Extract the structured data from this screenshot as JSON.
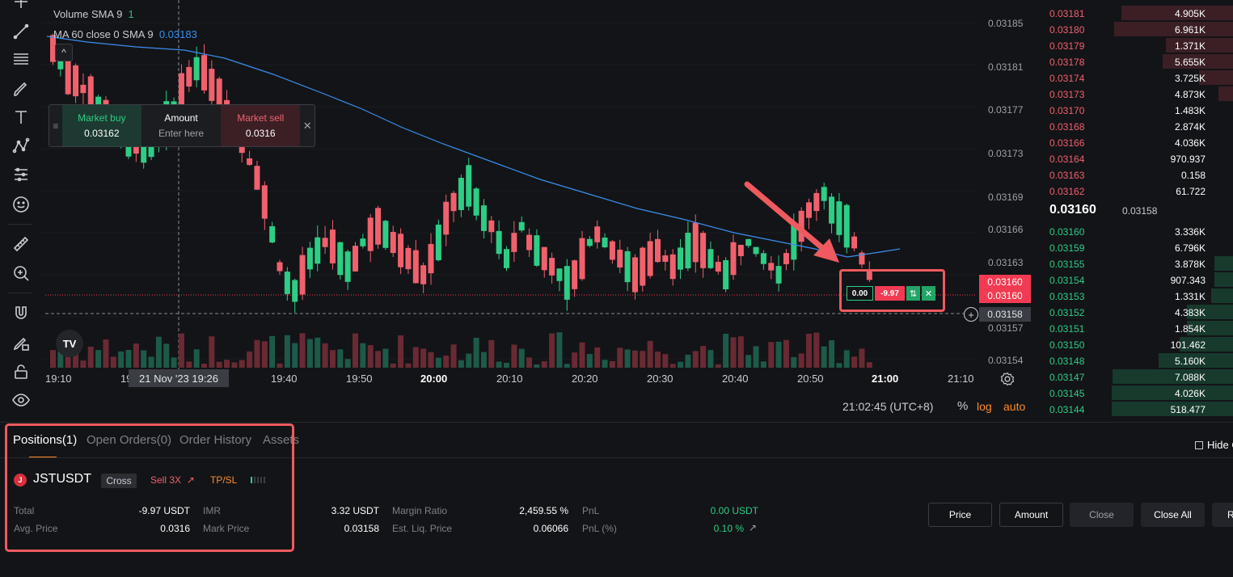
{
  "legend": {
    "volume_label": "Volume",
    "volume_sma": "SMA 9",
    "volume_value": "1",
    "ma_label": "MA 60 close 0 SMA 9",
    "ma_value": "0.03183",
    "collapse_glyph": "^"
  },
  "trade_widget": {
    "buy_label": "Market buy",
    "buy_price": "0.03162",
    "amount_label": "Amount",
    "amount_placeholder": "Enter here",
    "sell_label": "Market sell",
    "sell_price": "0.0316",
    "close_glyph": "✕",
    "drag_glyph": "≡"
  },
  "price_axis": [
    "0.03185",
    "0.03181",
    "0.03177",
    "0.03173",
    "0.03169",
    "0.03166",
    "0.03163",
    "0.03157",
    "0.03154"
  ],
  "price_tags": {
    "last_price_1": "0.03160",
    "last_price_2": "0.03160",
    "crosshair_price": "0.03158"
  },
  "time_axis": [
    "19:10",
    "19",
    "19:40",
    "19:50",
    "20:00",
    "20:10",
    "20:20",
    "20:30",
    "20:40",
    "20:50",
    "21:00",
    "21:10"
  ],
  "crosshair_time": "21 Nov '23   19:26",
  "clock": "21:02:45 (UTC+8)",
  "scale_options": {
    "percent": "%",
    "log": "log",
    "auto": "auto"
  },
  "tv_logo_text": "TV",
  "position_tag": {
    "qty": "0.00",
    "pnl": "-9.97",
    "reverse_glyph": "⇅",
    "close_glyph": "✕"
  },
  "colors": {
    "up": "#2ecd85",
    "down": "#f0616d",
    "ma": "#3a8ff0",
    "accent": "#ff8b2c",
    "highlight": "#ee5a5f"
  },
  "orderbook": {
    "asks": [
      {
        "price": "0.03181",
        "size": "4.905K",
        "depth": 0.92
      },
      {
        "price": "0.03180",
        "size": "6.961K",
        "depth": 0.98
      },
      {
        "price": "0.03179",
        "size": "1.371K",
        "depth": 0.55
      },
      {
        "price": "0.03178",
        "size": "5.655K",
        "depth": 0.58
      },
      {
        "price": "0.03174",
        "size": "3.725K",
        "depth": 0.28
      },
      {
        "price": "0.03173",
        "size": "4.873K",
        "depth": 0.12
      },
      {
        "price": "0.03170",
        "size": "1.483K",
        "depth": 0.0
      },
      {
        "price": "0.03168",
        "size": "2.874K",
        "depth": 0.0
      },
      {
        "price": "0.03166",
        "size": "4.036K",
        "depth": 0.0
      },
      {
        "price": "0.03164",
        "size": "970.937",
        "depth": 0.0
      },
      {
        "price": "0.03163",
        "size": "0.158",
        "depth": 0.0
      },
      {
        "price": "0.03162",
        "size": "61.722",
        "depth": 0.0
      }
    ],
    "mid_price": "0.03160",
    "mark_price": "0.03158",
    "bids": [
      {
        "price": "0.03160",
        "size": "3.336K",
        "depth": 0.0
      },
      {
        "price": "0.03159",
        "size": "6.796K",
        "depth": 0.0
      },
      {
        "price": "0.03155",
        "size": "3.878K",
        "depth": 0.15
      },
      {
        "price": "0.03154",
        "size": "907.343",
        "depth": 0.15
      },
      {
        "price": "0.03153",
        "size": "1.331K",
        "depth": 0.18
      },
      {
        "price": "0.03152",
        "size": "4.383K",
        "depth": 0.38
      },
      {
        "price": "0.03151",
        "size": "1.854K",
        "depth": 0.38
      },
      {
        "price": "0.03150",
        "size": "101.462",
        "depth": 0.44
      },
      {
        "price": "0.03148",
        "size": "5.160K",
        "depth": 0.61
      },
      {
        "price": "0.03147",
        "size": "7.088K",
        "depth": 0.99
      },
      {
        "price": "0.03145",
        "size": "4.026K",
        "depth": 1.0
      },
      {
        "price": "0.03144",
        "size": "518.477",
        "depth": 1.0
      }
    ]
  },
  "tabs": [
    {
      "label": "Positions(1)",
      "active": true
    },
    {
      "label": "Open Orders(0)",
      "active": false
    },
    {
      "label": "Order History",
      "active": false
    },
    {
      "label": "Assets",
      "active": false
    }
  ],
  "hide_other": "Hide O",
  "position": {
    "coin_icon": "J",
    "symbol": "JSTUSDT",
    "mode": "Cross",
    "side": "Sell 3X",
    "tpsl": "TP/SL",
    "strength_level": 1,
    "fields": [
      {
        "label": "Total",
        "value": "-9.97 USDT"
      },
      {
        "label": "Avg. Price",
        "value": "0.0316"
      },
      {
        "label": "IMR",
        "value": "3.32 USDT"
      },
      {
        "label": "Mark Price",
        "value": "0.03158"
      },
      {
        "label": "Margin Ratio",
        "value": "2,459.55 %"
      },
      {
        "label": "Est. Liq. Price",
        "value": "0.06066"
      },
      {
        "label": "PnL",
        "value": "0.00 USDT"
      },
      {
        "label": "PnL (%)",
        "value": "0.10 %"
      }
    ]
  },
  "actions": {
    "price": "Price",
    "amount": "Amount",
    "close": "Close",
    "close_all": "Close All",
    "r": "R"
  }
}
